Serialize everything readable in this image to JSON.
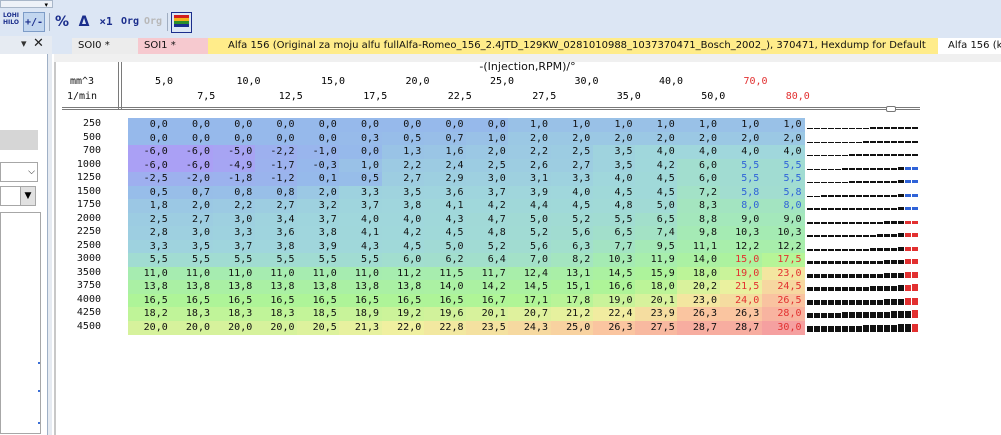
{
  "toolbar": {
    "hilo_top": "LOHI",
    "hilo_bottom": "HILO",
    "plusminus": "+/-",
    "percent": "%",
    "delta": "Δ",
    "times1": "×1",
    "org": "Org",
    "org_disabled": "Org",
    "colors": [
      "#d21f1f",
      "#f2b21b",
      "#2b8f2b",
      "#1b2e8c"
    ]
  },
  "sidebar": {
    "close": "✕",
    "pin": "▾",
    "combo_arrow": "⌵",
    "combo2_arrow": "▼"
  },
  "tabs": [
    {
      "label": "SOI0 *"
    },
    {
      "label": "SOI1 *"
    },
    {
      "label": "Alfa 156 (Original za moju alfu fullAlfa-Romeo_156_2.4JTD_129KW_0281010988_1037370471_Bosch_2002_), 370471, Hexdump for Default"
    },
    {
      "label": "Alfa 156 (k"
    }
  ],
  "map": {
    "title": "-(Injection,RPM)/°",
    "x_unit": "mm^3",
    "y_unit": "1/min",
    "x_values": [
      "5,0",
      "7,5",
      "10,0",
      "12,5",
      "15,0",
      "17,5",
      "20,0",
      "22,5",
      "25,0",
      "27,5",
      "30,0",
      "35,0",
      "40,0",
      "50,0",
      "70,0",
      "80,0"
    ],
    "x_highlight_from": 14,
    "highlight_color": "#e23030",
    "rpm": [
      "250",
      "500",
      "700",
      "1000",
      "1250",
      "1500",
      "1750",
      "2000",
      "2250",
      "2500",
      "3000",
      "3500",
      "3750",
      "4000",
      "4250",
      "4500"
    ],
    "values": [
      [
        "0,0",
        "0,0",
        "0,0",
        "0,0",
        "0,0",
        "0,0",
        "0,0",
        "0,0",
        "0,0",
        "1,0",
        "1,0",
        "1,0",
        "1,0",
        "1,0",
        "1,0",
        "1,0"
      ],
      [
        "0,0",
        "0,0",
        "0,0",
        "0,0",
        "0,0",
        "0,3",
        "0,5",
        "0,7",
        "1,0",
        "2,0",
        "2,0",
        "2,0",
        "2,0",
        "2,0",
        "2,0",
        "2,0"
      ],
      [
        "-6,0",
        "-6,0",
        "-5,0",
        "-2,2",
        "-1,0",
        "0,0",
        "1,3",
        "1,6",
        "2,0",
        "2,2",
        "2,5",
        "3,5",
        "4,0",
        "4,0",
        "4,0",
        "4,0"
      ],
      [
        "-6,0",
        "-6,0",
        "-4,9",
        "-1,7",
        "-0,3",
        "1,0",
        "2,2",
        "2,4",
        "2,5",
        "2,6",
        "2,7",
        "3,5",
        "4,2",
        "6,0",
        "5,5",
        "5,5"
      ],
      [
        "-2,5",
        "-2,0",
        "-1,8",
        "-1,2",
        "0,1",
        "0,5",
        "2,7",
        "2,9",
        "3,0",
        "3,1",
        "3,3",
        "4,0",
        "4,5",
        "6,0",
        "5,5",
        "5,5"
      ],
      [
        "0,5",
        "0,7",
        "0,8",
        "0,8",
        "2,0",
        "3,3",
        "3,5",
        "3,6",
        "3,7",
        "3,9",
        "4,0",
        "4,5",
        "4,5",
        "7,2",
        "5,8",
        "5,8"
      ],
      [
        "1,8",
        "2,0",
        "2,2",
        "2,7",
        "3,2",
        "3,7",
        "3,8",
        "4,1",
        "4,2",
        "4,4",
        "4,5",
        "4,8",
        "5,0",
        "8,3",
        "8,0",
        "8,0"
      ],
      [
        "2,5",
        "2,7",
        "3,0",
        "3,4",
        "3,7",
        "4,0",
        "4,0",
        "4,3",
        "4,7",
        "5,0",
        "5,2",
        "5,5",
        "6,5",
        "8,8",
        "9,0",
        "9,0"
      ],
      [
        "2,8",
        "3,0",
        "3,3",
        "3,6",
        "3,8",
        "4,1",
        "4,2",
        "4,5",
        "4,8",
        "5,2",
        "5,6",
        "6,5",
        "7,4",
        "9,8",
        "10,3",
        "10,3"
      ],
      [
        "3,3",
        "3,5",
        "3,7",
        "3,8",
        "3,9",
        "4,3",
        "4,5",
        "5,0",
        "5,2",
        "5,6",
        "6,3",
        "7,7",
        "9,5",
        "11,1",
        "12,2",
        "12,2"
      ],
      [
        "5,5",
        "5,5",
        "5,5",
        "5,5",
        "5,5",
        "5,5",
        "6,0",
        "6,2",
        "6,4",
        "7,0",
        "8,2",
        "10,3",
        "11,9",
        "14,0",
        "15,0",
        "17,5"
      ],
      [
        "11,0",
        "11,0",
        "11,0",
        "11,0",
        "11,0",
        "11,0",
        "11,2",
        "11,5",
        "11,7",
        "12,4",
        "13,1",
        "14,5",
        "15,9",
        "18,0",
        "19,0",
        "23,0"
      ],
      [
        "13,8",
        "13,8",
        "13,8",
        "13,8",
        "13,8",
        "13,8",
        "13,8",
        "14,0",
        "14,2",
        "14,5",
        "15,1",
        "16,6",
        "18,0",
        "20,2",
        "21,5",
        "24,5"
      ],
      [
        "16,5",
        "16,5",
        "16,5",
        "16,5",
        "16,5",
        "16,5",
        "16,5",
        "16,5",
        "16,7",
        "17,1",
        "17,8",
        "19,0",
        "20,1",
        "23,0",
        "24,0",
        "26,5"
      ],
      [
        "18,2",
        "18,3",
        "18,3",
        "18,3",
        "18,5",
        "18,9",
        "19,2",
        "19,6",
        "20,1",
        "20,7",
        "21,2",
        "22,4",
        "23,9",
        "26,3",
        "26,3",
        "28,0"
      ],
      [
        "20,0",
        "20,0",
        "20,0",
        "20,0",
        "20,5",
        "21,3",
        "22,0",
        "22,8",
        "23,5",
        "24,3",
        "25,0",
        "26,3",
        "27,5",
        "28,7",
        "28,7",
        "30,0"
      ]
    ]
  }
}
